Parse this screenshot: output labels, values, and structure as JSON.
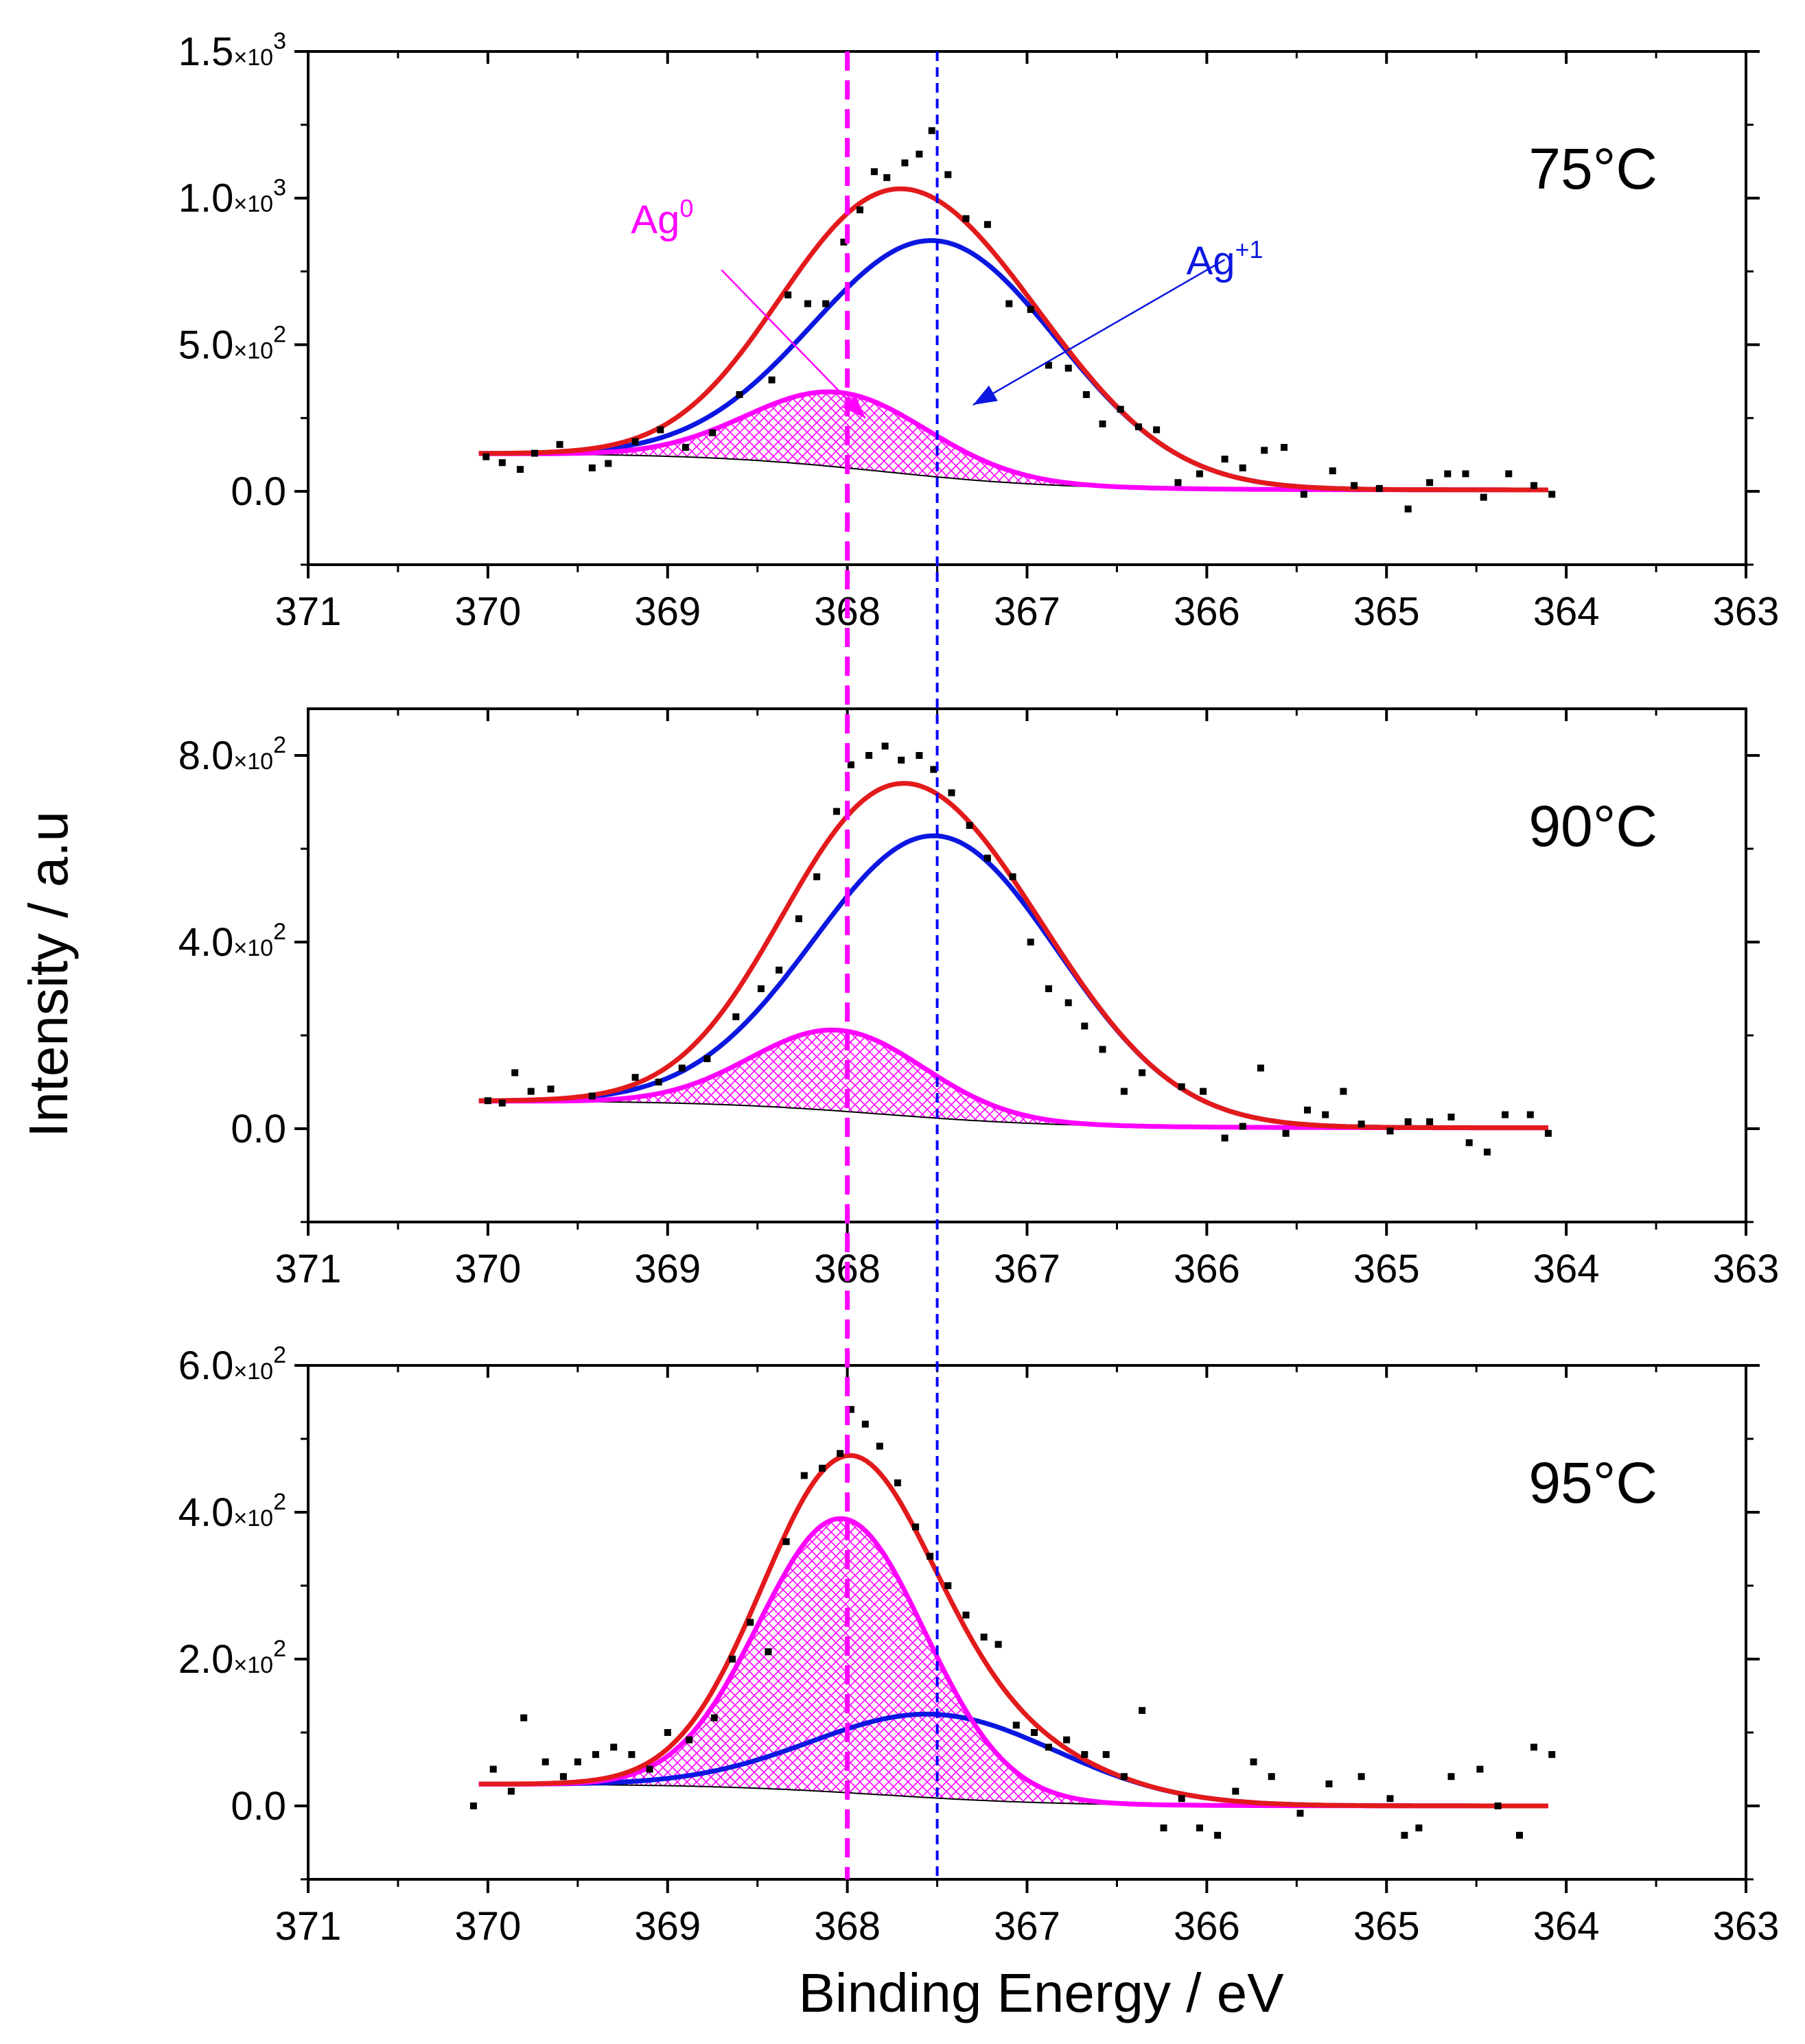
{
  "chart_data": {
    "type": "line",
    "title": "",
    "xlabel": "Binding Energy / eV",
    "ylabel": "Intensity / a.u",
    "x_reversed": true,
    "xlim": [
      371,
      363
    ],
    "x_ticks": [
      371,
      370,
      369,
      368,
      367,
      366,
      365,
      364,
      363
    ],
    "x_tick_labels": [
      "371",
      "370",
      "369",
      "368",
      "367",
      "366",
      "365",
      "364",
      "363"
    ],
    "reference_lines": [
      {
        "name": "Ag0 reference",
        "x": 368.0,
        "color": "#ff00ff",
        "style": "dashed"
      },
      {
        "name": "Ag+1 reference",
        "x": 367.5,
        "color": "#0000ff",
        "style": "dashed"
      }
    ],
    "colors": {
      "envelope": "#e31a1c",
      "ag_plus1": "#0b17e0",
      "ag0": "#ff00ff",
      "background": "#000000",
      "points": "#000000"
    },
    "panels": [
      {
        "label": "75°C",
        "ylim": [
          -250,
          1500
        ],
        "y_ticks": [
          0,
          500,
          1000,
          1500
        ],
        "y_tick_labels": [
          {
            "mantissa": "0.0",
            "exp": ""
          },
          {
            "mantissa": "5.0",
            "exp": "2"
          },
          {
            "mantissa": "1.0",
            "exp": "3"
          },
          {
            "mantissa": "1.5",
            "exp": "3"
          }
        ],
        "background_line": {
          "start": 130,
          "end": 5,
          "center": 367.8,
          "width": 0.5
        },
        "peaks": {
          "ag0": {
            "center": 368.05,
            "amplitude": 255,
            "sigma": 0.5
          },
          "ag_plus1": {
            "center": 367.5,
            "amplitude": 805,
            "sigma": 0.68
          }
        },
        "annotations": [
          {
            "series": "Ag0",
            "text": "Ag",
            "sup": "0",
            "text_x": 369.03,
            "text_y": 880,
            "arrow_from": [
              368.7,
              755
            ],
            "arrow_to": [
              367.9,
              250
            ]
          },
          {
            "series": "Ag+1",
            "text": "Ag",
            "sup": "+1",
            "text_x": 365.9,
            "text_y": 740,
            "arrow_from": [
              365.9,
              790
            ],
            "arrow_to": [
              367.3,
              295
            ]
          }
        ],
        "points": [
          [
            370.01,
            118
          ],
          [
            369.92,
            98
          ],
          [
            369.82,
            75
          ],
          [
            369.74,
            130
          ],
          [
            369.6,
            160
          ],
          [
            369.42,
            80
          ],
          [
            369.33,
            95
          ],
          [
            369.18,
            170
          ],
          [
            369.04,
            210
          ],
          [
            368.9,
            150
          ],
          [
            368.75,
            200
          ],
          [
            368.6,
            330
          ],
          [
            368.42,
            380
          ],
          [
            368.33,
            670
          ],
          [
            368.22,
            640
          ],
          [
            368.12,
            640
          ],
          [
            368.02,
            850
          ],
          [
            367.93,
            960
          ],
          [
            367.85,
            1090
          ],
          [
            367.78,
            1070
          ],
          [
            367.68,
            1120
          ],
          [
            367.6,
            1150
          ],
          [
            367.53,
            1230
          ],
          [
            367.44,
            1080
          ],
          [
            367.34,
            930
          ],
          [
            367.22,
            910
          ],
          [
            367.1,
            640
          ],
          [
            366.98,
            620
          ],
          [
            366.88,
            430
          ],
          [
            366.77,
            420
          ],
          [
            366.67,
            330
          ],
          [
            366.58,
            230
          ],
          [
            366.48,
            280
          ],
          [
            366.38,
            220
          ],
          [
            366.28,
            210
          ],
          [
            366.16,
            30
          ],
          [
            366.04,
            60
          ],
          [
            365.9,
            110
          ],
          [
            365.8,
            80
          ],
          [
            365.68,
            140
          ],
          [
            365.57,
            150
          ],
          [
            365.46,
            -10
          ],
          [
            365.3,
            70
          ],
          [
            365.18,
            20
          ],
          [
            365.04,
            10
          ],
          [
            364.88,
            -60
          ],
          [
            364.76,
            30
          ],
          [
            364.66,
            60
          ],
          [
            364.56,
            60
          ],
          [
            364.46,
            -20
          ],
          [
            364.32,
            60
          ],
          [
            364.18,
            20
          ],
          [
            364.08,
            -10
          ]
        ]
      },
      {
        "label": "90°C",
        "ylim": [
          -200,
          900
        ],
        "y_ticks": [
          0,
          400,
          800
        ],
        "y_tick_labels": [
          {
            "mantissa": "0.0",
            "exp": ""
          },
          {
            "mantissa": "4.0",
            "exp": "2"
          },
          {
            "mantissa": "8.0",
            "exp": "2"
          }
        ],
        "background_line": {
          "start": 60,
          "end": 2,
          "center": 367.8,
          "width": 0.5
        },
        "peaks": {
          "ag0": {
            "center": 368.05,
            "amplitude": 173,
            "sigma": 0.48
          },
          "ag_plus1": {
            "center": 367.5,
            "amplitude": 605,
            "sigma": 0.68
          }
        },
        "annotations": [],
        "points": [
          [
            370.0,
            60
          ],
          [
            369.92,
            55
          ],
          [
            369.85,
            120
          ],
          [
            369.76,
            80
          ],
          [
            369.65,
            85
          ],
          [
            369.42,
            70
          ],
          [
            369.18,
            110
          ],
          [
            369.05,
            100
          ],
          [
            368.92,
            130
          ],
          [
            368.78,
            150
          ],
          [
            368.62,
            240
          ],
          [
            368.48,
            300
          ],
          [
            368.38,
            340
          ],
          [
            368.27,
            450
          ],
          [
            368.17,
            540
          ],
          [
            368.06,
            680
          ],
          [
            367.98,
            780
          ],
          [
            367.88,
            800
          ],
          [
            367.79,
            820
          ],
          [
            367.7,
            790
          ],
          [
            367.6,
            800
          ],
          [
            367.52,
            770
          ],
          [
            367.42,
            720
          ],
          [
            367.32,
            650
          ],
          [
            367.22,
            580
          ],
          [
            367.08,
            540
          ],
          [
            366.98,
            400
          ],
          [
            366.88,
            300
          ],
          [
            366.77,
            270
          ],
          [
            366.68,
            220
          ],
          [
            366.58,
            170
          ],
          [
            366.46,
            80
          ],
          [
            366.36,
            120
          ],
          [
            366.14,
            90
          ],
          [
            366.02,
            80
          ],
          [
            365.9,
            -20
          ],
          [
            365.8,
            5
          ],
          [
            365.7,
            130
          ],
          [
            365.56,
            -10
          ],
          [
            365.44,
            40
          ],
          [
            365.34,
            30
          ],
          [
            365.24,
            80
          ],
          [
            365.14,
            10
          ],
          [
            364.98,
            -5
          ],
          [
            364.88,
            15
          ],
          [
            364.76,
            15
          ],
          [
            364.64,
            25
          ],
          [
            364.54,
            -30
          ],
          [
            364.44,
            -50
          ],
          [
            364.34,
            30
          ],
          [
            364.2,
            30
          ],
          [
            364.1,
            -10
          ]
        ]
      },
      {
        "label": "95°C",
        "ylim": [
          -100,
          600
        ],
        "y_ticks": [
          0,
          200,
          400,
          600
        ],
        "y_tick_labels": [
          {
            "mantissa": "0.0",
            "exp": ""
          },
          {
            "mantissa": "2.0",
            "exp": "2"
          },
          {
            "mantissa": "4.0",
            "exp": "2"
          },
          {
            "mantissa": "6.0",
            "exp": "2"
          }
        ],
        "background_line": {
          "start": 30,
          "end": 0,
          "center": 367.8,
          "width": 0.5
        },
        "peaks": {
          "ag0": {
            "center": 368.03,
            "amplitude": 373,
            "sigma": 0.46
          },
          "ag_plus1": {
            "center": 367.5,
            "amplitude": 114,
            "sigma": 0.68
          }
        },
        "annotations": [],
        "points": [
          [
            370.08,
            0
          ],
          [
            369.97,
            50
          ],
          [
            369.87,
            20
          ],
          [
            369.8,
            120
          ],
          [
            369.68,
            60
          ],
          [
            369.58,
            40
          ],
          [
            369.5,
            60
          ],
          [
            369.4,
            70
          ],
          [
            369.3,
            80
          ],
          [
            369.2,
            70
          ],
          [
            369.1,
            50
          ],
          [
            369.0,
            100
          ],
          [
            368.88,
            90
          ],
          [
            368.74,
            120
          ],
          [
            368.64,
            200
          ],
          [
            368.54,
            250
          ],
          [
            368.44,
            210
          ],
          [
            368.34,
            360
          ],
          [
            368.24,
            450
          ],
          [
            368.14,
            460
          ],
          [
            368.04,
            480
          ],
          [
            367.98,
            540
          ],
          [
            367.9,
            520
          ],
          [
            367.82,
            490
          ],
          [
            367.72,
            440
          ],
          [
            367.62,
            380
          ],
          [
            367.54,
            340
          ],
          [
            367.44,
            300
          ],
          [
            367.34,
            260
          ],
          [
            367.24,
            230
          ],
          [
            367.16,
            220
          ],
          [
            367.06,
            110
          ],
          [
            366.96,
            100
          ],
          [
            366.88,
            80
          ],
          [
            366.78,
            90
          ],
          [
            366.68,
            70
          ],
          [
            366.56,
            70
          ],
          [
            366.46,
            40
          ],
          [
            366.36,
            130
          ],
          [
            366.24,
            -30
          ],
          [
            366.14,
            10
          ],
          [
            366.04,
            -30
          ],
          [
            365.94,
            -40
          ],
          [
            365.84,
            20
          ],
          [
            365.74,
            60
          ],
          [
            365.64,
            40
          ],
          [
            365.48,
            -10
          ],
          [
            365.32,
            30
          ],
          [
            365.14,
            40
          ],
          [
            364.98,
            10
          ],
          [
            364.9,
            -40
          ],
          [
            364.82,
            -30
          ],
          [
            364.64,
            40
          ],
          [
            364.48,
            50
          ],
          [
            364.38,
            0
          ],
          [
            364.26,
            -40
          ],
          [
            364.18,
            80
          ],
          [
            364.08,
            70
          ]
        ]
      }
    ]
  }
}
